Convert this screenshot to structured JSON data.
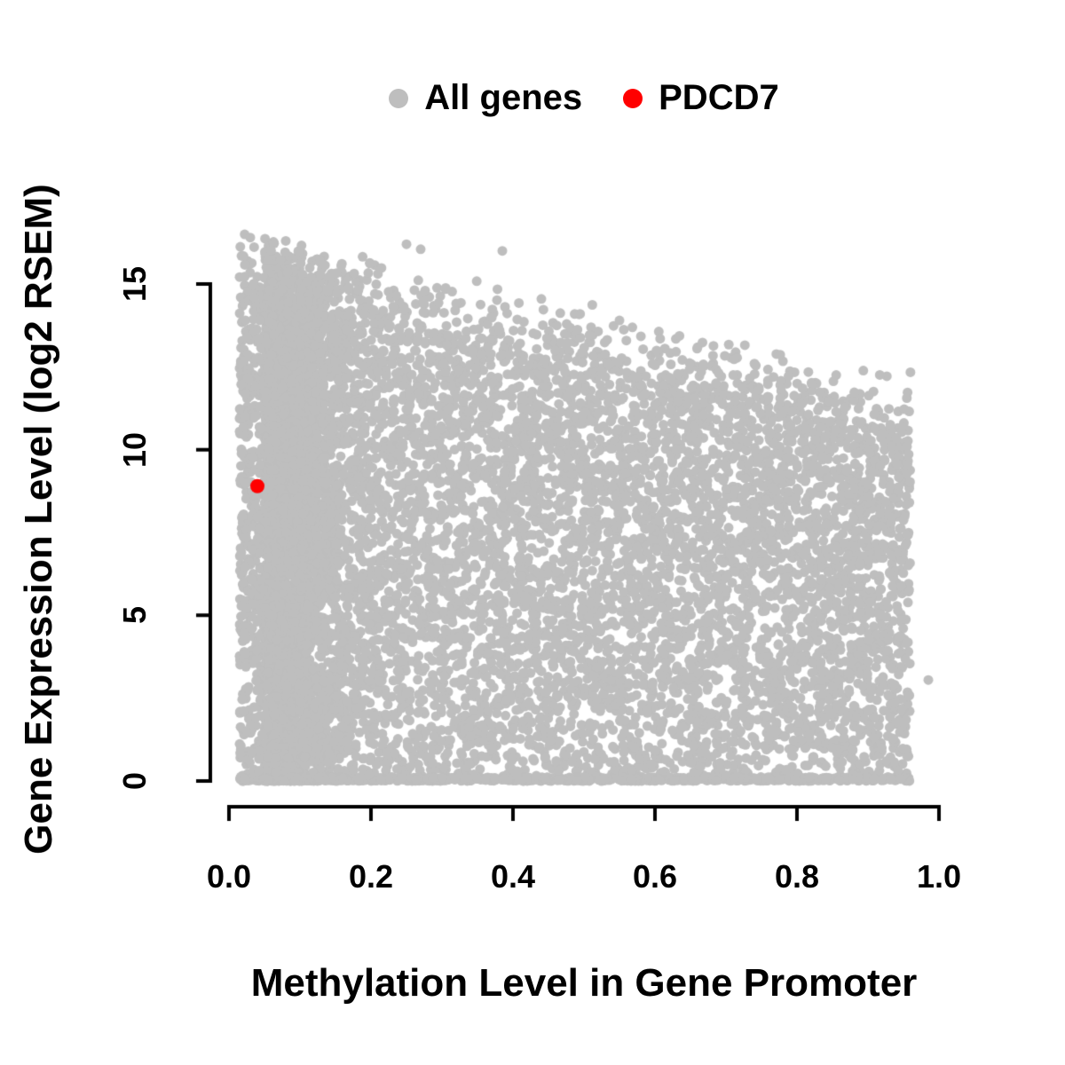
{
  "chart_data": {
    "type": "scatter",
    "title": "",
    "xlabel": "Methylation Level in Gene Promoter",
    "ylabel": "Gene Expression Level (log2 RSEM)",
    "xlim": [
      0.0,
      1.0
    ],
    "ylim": [
      0,
      16.6
    ],
    "x_ticks": [
      "0.0",
      "0.2",
      "0.4",
      "0.6",
      "0.8",
      "1.0"
    ],
    "x_tick_values": [
      0.0,
      0.2,
      0.4,
      0.6,
      0.8,
      1.0
    ],
    "y_ticks": [
      "0",
      "5",
      "10",
      "15"
    ],
    "y_tick_values": [
      0,
      5,
      10,
      15
    ],
    "grid": false,
    "legend_position": "top-center",
    "background": "#FFFFFF",
    "axis_color": "#000000",
    "series": [
      {
        "name": "All genes",
        "color": "#BEBEBE",
        "marker": "filled-circle",
        "marker_radius": 5.5,
        "generator": {
          "comment": "dense cloud: expression spans 0-16.5 at low methylation; upper envelope declines toward ~11.5-12.5 at methylation ~0.95; dense baseline row at expression 0 across full x range; heaviest density at methylation < 0.15",
          "seed": 42,
          "n_points": 12000,
          "x_range": [
            0.015,
            0.96
          ],
          "x_skew": 1.15,
          "low_x_cluster": {
            "fraction": 0.3,
            "center": 0.05,
            "spread": 0.05
          },
          "envelope_intercept": 15.7,
          "envelope_slope": -4.6,
          "envelope_noise": 1.1,
          "y_cap": 16.5,
          "baseline_fraction": 0.1,
          "baseline_jitter": 0.12,
          "y_fill_exponent": 0.9,
          "extra_points": [
            [
              0.03,
              16.4
            ],
            [
              0.08,
              16.3
            ],
            [
              0.25,
              16.2
            ],
            [
              0.27,
              16.05
            ],
            [
              0.385,
              16.0
            ],
            [
              0.44,
              14.55
            ],
            [
              0.55,
              13.9
            ],
            [
              0.985,
              3.05
            ]
          ]
        }
      },
      {
        "name": "PDCD7",
        "color": "#FF0000",
        "marker": "filled-circle",
        "marker_radius": 8,
        "points": [
          [
            0.04,
            8.9
          ]
        ]
      }
    ]
  }
}
